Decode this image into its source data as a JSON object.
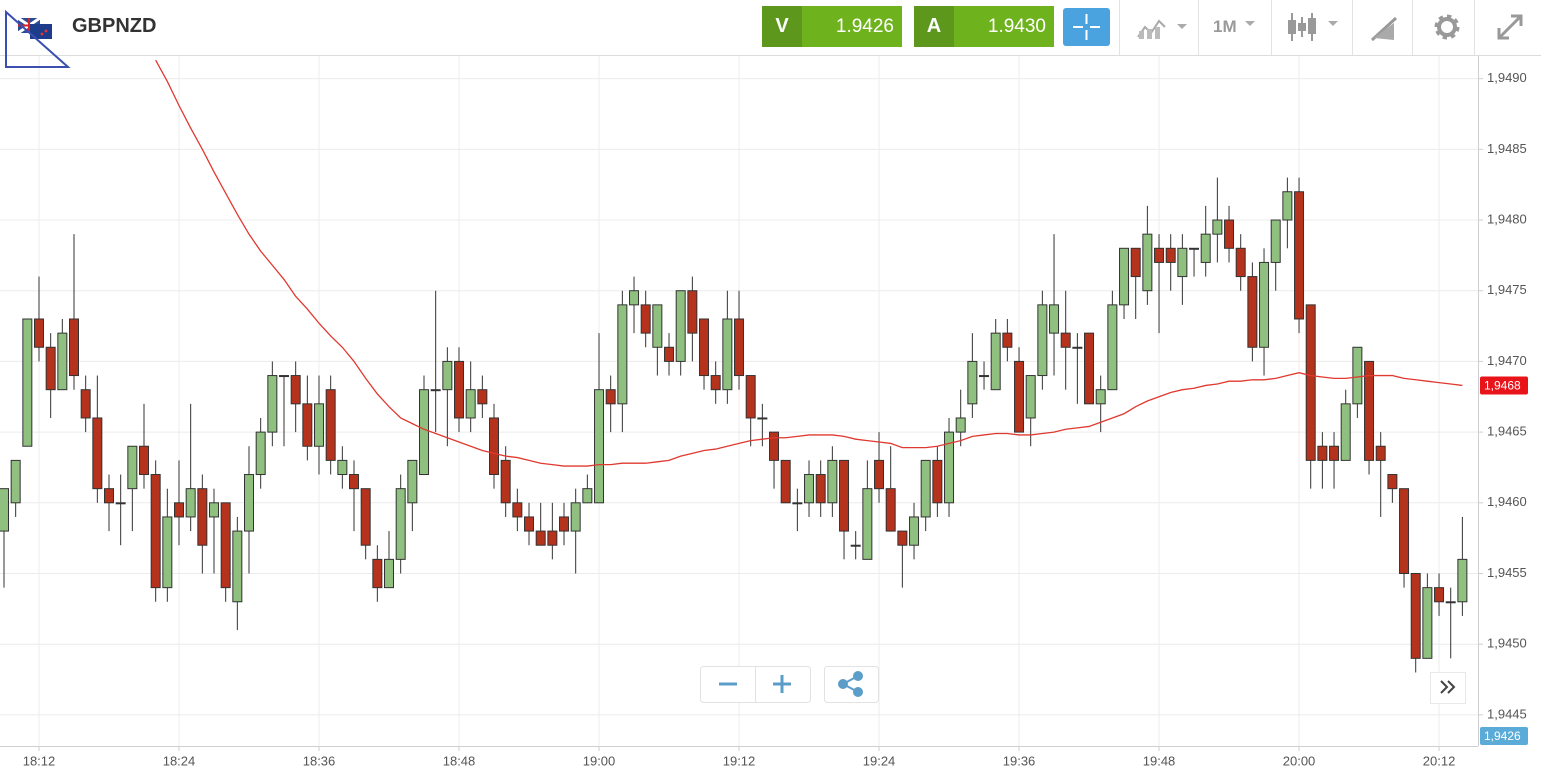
{
  "header": {
    "symbol": "GBPNZD",
    "sell": {
      "label": "V",
      "price": "1.9426"
    },
    "buy": {
      "label": "A",
      "price": "1.9430"
    },
    "timeframe": "1M"
  },
  "chart_data": {
    "type": "candlestick",
    "x": [
      "18:09",
      "18:10",
      "18:11",
      "18:12",
      "18:13",
      "18:14",
      "18:15",
      "18:16",
      "18:17",
      "18:18",
      "18:19",
      "18:20",
      "18:21",
      "18:22",
      "18:23",
      "18:24",
      "18:25",
      "18:26",
      "18:27",
      "18:28",
      "18:29",
      "18:30",
      "18:31",
      "18:32",
      "18:33",
      "18:34",
      "18:35",
      "18:36",
      "18:37",
      "18:38",
      "18:39",
      "18:40",
      "18:41",
      "18:42",
      "18:43",
      "18:44",
      "18:45",
      "18:46",
      "18:47",
      "18:48",
      "18:49",
      "18:50",
      "18:51",
      "18:52",
      "18:53",
      "18:54",
      "18:55",
      "18:56",
      "18:57",
      "18:58",
      "18:59",
      "19:00",
      "19:01",
      "19:02",
      "19:03",
      "19:04",
      "19:05",
      "19:06",
      "19:07",
      "19:08",
      "19:09",
      "19:10",
      "19:11",
      "19:12",
      "19:13",
      "19:14",
      "19:15",
      "19:16",
      "19:17",
      "19:18",
      "19:19",
      "19:20",
      "19:21",
      "19:22",
      "19:23",
      "19:24",
      "19:25",
      "19:26",
      "19:27",
      "19:28",
      "19:29",
      "19:30",
      "19:31",
      "19:32",
      "19:33",
      "19:34",
      "19:35",
      "19:36",
      "19:37",
      "19:38",
      "19:39",
      "19:40",
      "19:41",
      "19:42",
      "19:43",
      "19:44",
      "19:45",
      "19:46",
      "19:47",
      "19:48",
      "19:49",
      "19:50",
      "19:51",
      "19:52",
      "19:53",
      "19:54",
      "19:55",
      "19:56",
      "19:57",
      "19:58",
      "19:59",
      "20:00",
      "20:01",
      "20:02",
      "20:03",
      "20:04",
      "20:05",
      "20:06",
      "20:07",
      "20:08",
      "20:09",
      "20:10",
      "20:11",
      "20:12",
      "20:13",
      "20:14"
    ],
    "open": [
      1.9458,
      1.946,
      1.9464,
      1.9473,
      1.9471,
      1.9468,
      1.9473,
      1.9468,
      1.9466,
      1.9461,
      1.946,
      1.9461,
      1.9464,
      1.9462,
      1.9454,
      1.946,
      1.9459,
      1.9461,
      1.9459,
      1.946,
      1.9453,
      1.9458,
      1.9462,
      1.9465,
      1.9469,
      1.9469,
      1.9467,
      1.9464,
      1.9468,
      1.9462,
      1.9462,
      1.9461,
      1.9456,
      1.9454,
      1.9456,
      1.946,
      1.9462,
      1.9468,
      1.9468,
      1.947,
      1.9466,
      1.9468,
      1.9466,
      1.9463,
      1.946,
      1.9459,
      1.9458,
      1.9458,
      1.9459,
      1.9458,
      1.946,
      1.946,
      1.9468,
      1.9467,
      1.9474,
      1.9474,
      1.9471,
      1.9471,
      1.947,
      1.9475,
      1.9473,
      1.9469,
      1.9468,
      1.9473,
      1.9469,
      1.9466,
      1.9465,
      1.9463,
      1.946,
      1.946,
      1.9462,
      1.946,
      1.9463,
      1.9457,
      1.9456,
      1.9463,
      1.9461,
      1.9458,
      1.9457,
      1.9459,
      1.9463,
      1.946,
      1.9465,
      1.9467,
      1.9469,
      1.9468,
      1.9472,
      1.947,
      1.9466,
      1.9469,
      1.9472,
      1.9472,
      1.9471,
      1.9472,
      1.9467,
      1.9468,
      1.9474,
      1.9478,
      1.9475,
      1.9478,
      1.9478,
      1.9476,
      1.9478,
      1.9477,
      1.9479,
      1.948,
      1.9478,
      1.9476,
      1.9471,
      1.9477,
      1.948,
      1.9482,
      1.9474,
      1.9464,
      1.9464,
      1.9463,
      1.9467,
      1.947,
      1.9464,
      1.9462,
      1.9461,
      1.9455,
      1.9449,
      1.9454,
      1.9453,
      1.9453
    ],
    "high": [
      1.9461,
      1.9463,
      1.9473,
      1.9476,
      1.9472,
      1.9473,
      1.9479,
      1.9469,
      1.9469,
      1.9462,
      1.9462,
      1.9464,
      1.9467,
      1.9463,
      1.9461,
      1.9463,
      1.9467,
      1.9462,
      1.9461,
      1.946,
      1.9459,
      1.9464,
      1.9466,
      1.947,
      1.9469,
      1.947,
      1.9469,
      1.9469,
      1.9469,
      1.9464,
      1.9463,
      1.9461,
      1.9457,
      1.9458,
      1.9462,
      1.9463,
      1.9469,
      1.9475,
      1.9471,
      1.9471,
      1.947,
      1.9469,
      1.9467,
      1.9464,
      1.9461,
      1.946,
      1.946,
      1.946,
      1.946,
      1.9461,
      1.9462,
      1.9472,
      1.9469,
      1.9475,
      1.9476,
      1.9475,
      1.9474,
      1.9472,
      1.9475,
      1.9476,
      1.9473,
      1.947,
      1.9475,
      1.9475,
      1.9469,
      1.9467,
      1.9465,
      1.9463,
      1.9461,
      1.9463,
      1.9463,
      1.9464,
      1.9463,
      1.9458,
      1.9463,
      1.9465,
      1.9464,
      1.9458,
      1.946,
      1.9463,
      1.9464,
      1.9466,
      1.9468,
      1.9472,
      1.947,
      1.9473,
      1.9473,
      1.9471,
      1.9469,
      1.9475,
      1.9479,
      1.9475,
      1.9472,
      1.9472,
      1.9469,
      1.9475,
      1.9478,
      1.9478,
      1.9481,
      1.9479,
      1.9479,
      1.9479,
      1.9478,
      1.9481,
      1.9483,
      1.9481,
      1.9479,
      1.9477,
      1.9478,
      1.948,
      1.9483,
      1.9483,
      1.9474,
      1.9465,
      1.9465,
      1.9468,
      1.9471,
      1.947,
      1.9465,
      1.9462,
      1.9461,
      1.9455,
      1.9455,
      1.9455,
      1.9454,
      1.9459
    ],
    "low": [
      1.9454,
      1.9459,
      1.9464,
      1.947,
      1.9466,
      1.9468,
      1.9468,
      1.9465,
      1.946,
      1.9458,
      1.9457,
      1.9458,
      1.9461,
      1.9453,
      1.9453,
      1.9457,
      1.9458,
      1.9455,
      1.9455,
      1.9453,
      1.9451,
      1.9455,
      1.9461,
      1.9464,
      1.9464,
      1.9465,
      1.9463,
      1.9462,
      1.9462,
      1.9461,
      1.9458,
      1.9456,
      1.9453,
      1.9454,
      1.9455,
      1.9458,
      1.9462,
      1.9465,
      1.9464,
      1.9465,
      1.9465,
      1.9466,
      1.9461,
      1.9459,
      1.9458,
      1.9457,
      1.9457,
      1.9456,
      1.9457,
      1.9455,
      1.946,
      1.946,
      1.9465,
      1.9465,
      1.9472,
      1.9471,
      1.9469,
      1.9469,
      1.9469,
      1.947,
      1.9468,
      1.9467,
      1.9467,
      1.9468,
      1.9464,
      1.9464,
      1.9461,
      1.946,
      1.9458,
      1.9459,
      1.9459,
      1.9459,
      1.9456,
      1.9456,
      1.9456,
      1.946,
      1.9458,
      1.9454,
      1.9456,
      1.9458,
      1.9459,
      1.9459,
      1.9464,
      1.9466,
      1.9468,
      1.9468,
      1.947,
      1.9465,
      1.9464,
      1.9468,
      1.9469,
      1.9468,
      1.9467,
      1.9467,
      1.9465,
      1.9468,
      1.9473,
      1.9473,
      1.9474,
      1.9472,
      1.9475,
      1.9474,
      1.9476,
      1.9476,
      1.9477,
      1.9477,
      1.9475,
      1.947,
      1.9469,
      1.9475,
      1.9478,
      1.9472,
      1.9461,
      1.9461,
      1.9461,
      1.9463,
      1.9466,
      1.9462,
      1.9459,
      1.946,
      1.9454,
      1.9448,
      1.9449,
      1.9452,
      1.9449,
      1.9452
    ],
    "close": [
      1.9461,
      1.9463,
      1.9473,
      1.9471,
      1.9468,
      1.9472,
      1.9469,
      1.9466,
      1.9461,
      1.946,
      1.946,
      1.9464,
      1.9462,
      1.9454,
      1.9459,
      1.9459,
      1.9461,
      1.9457,
      1.946,
      1.9454,
      1.9458,
      1.9462,
      1.9465,
      1.9469,
      1.9469,
      1.9467,
      1.9464,
      1.9467,
      1.9463,
      1.9463,
      1.9461,
      1.9457,
      1.9454,
      1.9456,
      1.9461,
      1.9463,
      1.9468,
      1.9468,
      1.947,
      1.9466,
      1.9468,
      1.9467,
      1.9462,
      1.946,
      1.9459,
      1.9458,
      1.9457,
      1.9457,
      1.9458,
      1.946,
      1.9461,
      1.9468,
      1.9467,
      1.9474,
      1.9475,
      1.9472,
      1.9474,
      1.947,
      1.9475,
      1.9472,
      1.9469,
      1.9468,
      1.9473,
      1.9469,
      1.9466,
      1.9466,
      1.9463,
      1.946,
      1.946,
      1.9462,
      1.946,
      1.9463,
      1.9458,
      1.9457,
      1.9461,
      1.9461,
      1.9458,
      1.9457,
      1.9459,
      1.9463,
      1.946,
      1.9465,
      1.9466,
      1.947,
      1.9469,
      1.9472,
      1.9471,
      1.9465,
      1.9469,
      1.9474,
      1.9474,
      1.9471,
      1.9471,
      1.9467,
      1.9468,
      1.9474,
      1.9478,
      1.9476,
      1.9479,
      1.9477,
      1.9477,
      1.9478,
      1.9478,
      1.9479,
      1.948,
      1.9478,
      1.9476,
      1.9471,
      1.9477,
      1.948,
      1.9482,
      1.9473,
      1.9463,
      1.9463,
      1.9463,
      1.9467,
      1.9471,
      1.9463,
      1.9463,
      1.9461,
      1.9455,
      1.9449,
      1.9454,
      1.9453,
      1.9453,
      1.9456
    ],
    "up_color": "#8fc07f",
    "down_color": "#b5321c",
    "moving_average": {
      "color": "#e0392f",
      "values": [
        null,
        null,
        null,
        null,
        null,
        null,
        null,
        null,
        null,
        null,
        null,
        null,
        null,
        1.94913,
        1.94898,
        1.94881,
        1.94865,
        1.9485,
        1.94834,
        1.94819,
        1.94804,
        1.9479,
        1.94778,
        1.94768,
        1.94758,
        1.94746,
        1.94737,
        1.94727,
        1.94718,
        1.9471,
        1.947,
        1.94688,
        1.94677,
        1.94668,
        1.9466,
        1.94656,
        1.94652,
        1.94649,
        1.94646,
        1.94643,
        1.9464,
        1.94637,
        1.94635,
        1.94633,
        1.94632,
        1.9463,
        1.94628,
        1.94627,
        1.94626,
        1.94626,
        1.94626,
        1.94627,
        1.94627,
        1.94628,
        1.94628,
        1.94628,
        1.94629,
        1.9463,
        1.94633,
        1.94635,
        1.94637,
        1.94638,
        1.9464,
        1.94642,
        1.94644,
        1.94645,
        1.94646,
        1.94646,
        1.94647,
        1.94648,
        1.94648,
        1.94648,
        1.94647,
        1.94645,
        1.94644,
        1.94643,
        1.94642,
        1.94639,
        1.94639,
        1.94639,
        1.9464,
        1.94642,
        1.94644,
        1.94647,
        1.94648,
        1.94649,
        1.94649,
        1.94648,
        1.94648,
        1.94649,
        1.9465,
        1.94652,
        1.94653,
        1.94654,
        1.94657,
        1.9466,
        1.94663,
        1.94668,
        1.94672,
        1.94675,
        1.94678,
        1.9468,
        1.94681,
        1.94683,
        1.94684,
        1.94686,
        1.94686,
        1.94687,
        1.94687,
        1.94688,
        1.9469,
        1.94692,
        1.9469,
        1.94689,
        1.94688,
        1.94688,
        1.94689,
        1.9469,
        1.9469,
        1.9469,
        1.94688,
        1.94687,
        1.94686,
        1.94685,
        1.94684,
        1.94683
      ]
    },
    "ma_marker": {
      "label": "1,9468",
      "color": "#e8141a"
    },
    "price_marker": {
      "label": "1,9426",
      "color": "#5aabd8"
    },
    "ylim": [
      1.94428,
      1.94916
    ],
    "yticks": [
      {
        "value": 1.9445,
        "label": "1,9445"
      },
      {
        "value": 1.945,
        "label": "1,9450"
      },
      {
        "value": 1.9455,
        "label": "1,9455"
      },
      {
        "value": 1.946,
        "label": "1,9460"
      },
      {
        "value": 1.9465,
        "label": "1,9465"
      },
      {
        "value": 1.947,
        "label": "1,9470"
      },
      {
        "value": 1.9475,
        "label": "1,9475"
      },
      {
        "value": 1.948,
        "label": "1,9480"
      },
      {
        "value": 1.9485,
        "label": "1,9485"
      },
      {
        "value": 1.949,
        "label": "1,9490"
      }
    ],
    "xticks": [
      "18:12",
      "18:24",
      "18:36",
      "18:48",
      "19:00",
      "19:12",
      "19:24",
      "19:36",
      "19:48",
      "20:00",
      "20:12"
    ],
    "grid": true
  }
}
